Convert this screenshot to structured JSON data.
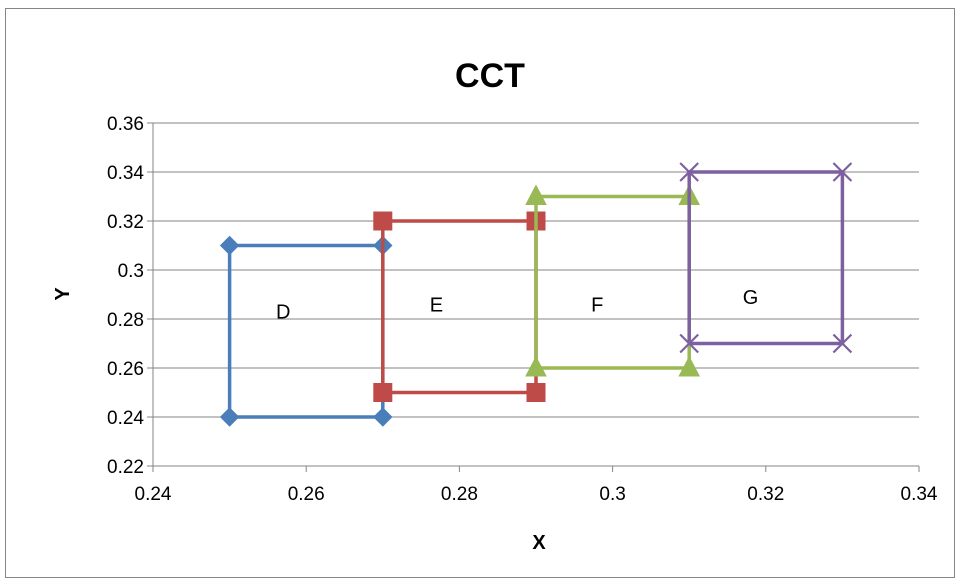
{
  "chart_data": {
    "type": "line",
    "title": "CCT",
    "xlabel": "X",
    "ylabel": "Y",
    "xlim": [
      0.24,
      0.34
    ],
    "ylim": [
      0.22,
      0.36
    ],
    "xticks": [
      "0.24",
      "0.26",
      "0.28",
      "0.3",
      "0.32",
      "0.34"
    ],
    "yticks": [
      "0.22",
      "0.24",
      "0.26",
      "0.28",
      "0.3",
      "0.32",
      "0.34",
      "0.36"
    ],
    "grid": "horizontal major gridlines",
    "legend": "none",
    "series": [
      {
        "region_label": "D",
        "color": "#4a7ebb",
        "marker": "diamond",
        "label_at": [
          0.257,
          0.283
        ],
        "points": [
          [
            0.25,
            0.24
          ],
          [
            0.25,
            0.31
          ],
          [
            0.27,
            0.31
          ],
          [
            0.27,
            0.24
          ],
          [
            0.25,
            0.24
          ]
        ]
      },
      {
        "region_label": "E",
        "color": "#be4b48",
        "marker": "square",
        "label_at": [
          0.277,
          0.286
        ],
        "points": [
          [
            0.27,
            0.25
          ],
          [
            0.27,
            0.32
          ],
          [
            0.29,
            0.32
          ],
          [
            0.29,
            0.25
          ],
          [
            0.27,
            0.25
          ]
        ]
      },
      {
        "region_label": "F",
        "color": "#98b954",
        "marker": "triangle",
        "label_at": [
          0.298,
          0.286
        ],
        "points": [
          [
            0.29,
            0.26
          ],
          [
            0.29,
            0.33
          ],
          [
            0.31,
            0.33
          ],
          [
            0.31,
            0.26
          ],
          [
            0.29,
            0.26
          ]
        ]
      },
      {
        "region_label": "G",
        "color": "#7d60a0",
        "marker": "x",
        "label_at": [
          0.318,
          0.289
        ],
        "points": [
          [
            0.31,
            0.27
          ],
          [
            0.31,
            0.34
          ],
          [
            0.33,
            0.34
          ],
          [
            0.33,
            0.27
          ],
          [
            0.31,
            0.27
          ]
        ]
      }
    ]
  }
}
